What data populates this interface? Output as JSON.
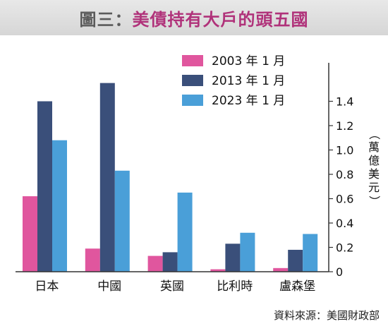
{
  "figure": {
    "title_prefix": "圖三：",
    "title": "美債持有大戶的頭五國",
    "source": "資料來源：美國財政部"
  },
  "chart_data": {
    "type": "bar",
    "categories": [
      "日本",
      "中國",
      "英國",
      "比利時",
      "盧森堡"
    ],
    "series": [
      {
        "name": "2003 年 1 月",
        "color": "#e0569e",
        "values": [
          0.62,
          0.19,
          0.13,
          0.02,
          0.03
        ]
      },
      {
        "name": "2013 年 1 月",
        "color": "#3a4f7a",
        "values": [
          1.4,
          1.55,
          0.16,
          0.23,
          0.18
        ]
      },
      {
        "name": "2023 年 1 月",
        "color": "#4a9fd8",
        "values": [
          1.08,
          0.83,
          0.65,
          0.32,
          0.31
        ]
      }
    ],
    "ylabel": "（萬億美元）",
    "ylim": [
      0,
      1.6
    ],
    "yticks": [
      0,
      0.2,
      0.4,
      0.6,
      0.8,
      1.0,
      1.2,
      1.4
    ],
    "y_axis_side": "right",
    "legend_position": "top-right",
    "grid": false
  }
}
